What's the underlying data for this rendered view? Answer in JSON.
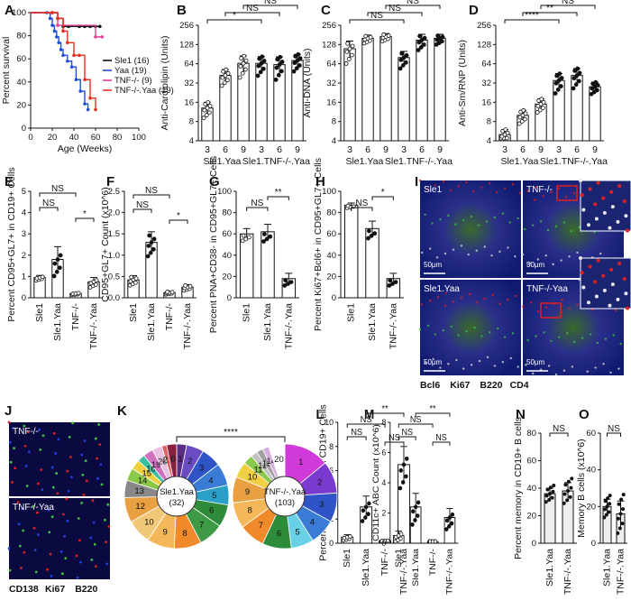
{
  "chart_data": [
    {
      "panel": "A",
      "type": "line",
      "ylabel": "Percent survival",
      "xlabel": "Age (Weeks)",
      "xlim": [
        0,
        100
      ],
      "ylim": [
        0,
        100
      ],
      "xticks": [
        "0",
        "20",
        "40",
        "60",
        "80",
        "100"
      ],
      "yticks": [
        "0",
        "20",
        "40",
        "60",
        "80",
        "100"
      ],
      "series": [
        {
          "name": "Sle1 (16)",
          "color": "#111111",
          "step": true,
          "x": [
            0,
            20,
            25,
            30,
            35,
            45,
            50,
            55,
            60,
            64
          ],
          "y": [
            100,
            100,
            95,
            88,
            88,
            88,
            88,
            88,
            88,
            88
          ]
        },
        {
          "name": "Yaa (19)",
          "color": "#1f4fd8",
          "step": true,
          "x": [
            0,
            15,
            18,
            20,
            22,
            24,
            26,
            28,
            30,
            34,
            38,
            42,
            46,
            50,
            53
          ],
          "y": [
            100,
            100,
            95,
            89,
            84,
            79,
            74,
            68,
            63,
            58,
            53,
            42,
            32,
            21,
            16
          ]
        },
        {
          "name": "TNF-/- (9)",
          "color": "#e0409a",
          "step": true,
          "x": [
            0,
            20,
            25,
            60,
            66
          ],
          "y": [
            100,
            100,
            89,
            79,
            79
          ]
        },
        {
          "name": "TNF-/-.Yaa (19)",
          "color": "#e53020",
          "step": true,
          "x": [
            0,
            20,
            25,
            30,
            34,
            40,
            45,
            50,
            55,
            60
          ],
          "y": [
            100,
            100,
            95,
            84,
            74,
            63,
            63,
            42,
            26,
            16
          ]
        }
      ]
    },
    {
      "panel": "B",
      "type": "bar",
      "ylabel": "Anti-Cardiolipin (Units)",
      "scale": "log2",
      "yticks": [
        "4",
        "8",
        "16",
        "32",
        "64",
        "128",
        "256"
      ],
      "categories": [
        "3",
        "6",
        "9",
        "3",
        "6",
        "9"
      ],
      "group_labels": [
        "Sle1.Yaa",
        "Sle1.TNF-/-.Yaa"
      ],
      "values": [
        13,
        42,
        65,
        65,
        62,
        72
      ],
      "errors": [
        3,
        10,
        20,
        18,
        20,
        18
      ],
      "significance": [
        "*",
        "NS",
        "NS"
      ]
    },
    {
      "panel": "C",
      "type": "bar",
      "ylabel": "Anti-DNA (Units)",
      "scale": "log2",
      "yticks": [
        "4",
        "8",
        "16",
        "32",
        "64",
        "128",
        "256"
      ],
      "categories": [
        "3",
        "6",
        "9",
        "3",
        "6",
        "9"
      ],
      "group_labels": [
        "Sle1.Yaa",
        "Sle1.TNF-/-.Yaa"
      ],
      "values": [
        110,
        160,
        170,
        80,
        150,
        160
      ],
      "errors": [
        35,
        20,
        20,
        20,
        35,
        25
      ],
      "significance": [
        "NS",
        "NS",
        "NS"
      ]
    },
    {
      "panel": "D",
      "type": "bar",
      "ylabel": "Anti-Sm/RNP (Units)",
      "scale": "log2",
      "yticks": [
        "4",
        "8",
        "16",
        "32",
        "64",
        "128",
        "256"
      ],
      "categories": [
        "3",
        "6",
        "9",
        "3",
        "6",
        "9"
      ],
      "group_labels": [
        "Sle1.Yaa",
        "Sle1.TNF-/-.Yaa"
      ],
      "values": [
        5,
        10,
        15,
        35,
        42,
        28
      ],
      "errors": [
        1,
        2,
        3,
        10,
        12,
        5
      ],
      "significance": [
        "****",
        "**",
        "NS"
      ]
    },
    {
      "panel": "E",
      "type": "bar",
      "ylabel": "Percent CD95+GL7+ in CD19+ Cells",
      "yticks": [
        "0",
        "1",
        "2",
        "3",
        "4",
        "5"
      ],
      "ylim": [
        0,
        5
      ],
      "categories": [
        "Sle1",
        "Sle1.Yaa",
        "TNF-/-",
        "TNF-/-.Yaa"
      ],
      "values": [
        0.95,
        1.8,
        0.2,
        0.75
      ],
      "errors": [
        0.1,
        0.6,
        0.05,
        0.2
      ],
      "significance": [
        "NS",
        "NS",
        "*"
      ]
    },
    {
      "panel": "F",
      "type": "bar",
      "ylabel": "CD95+GL7+ Count (x10^6)",
      "yticks": [
        "0.0",
        "0.5",
        "1.0",
        "1.5",
        "2.0",
        "2.5"
      ],
      "ylim": [
        0,
        2.5
      ],
      "categories": [
        "Sle1",
        "Sle1.Yaa",
        "TNF-/-",
        "TNF-/-.Yaa"
      ],
      "values": [
        0.42,
        1.3,
        0.12,
        0.25
      ],
      "errors": [
        0.1,
        0.25,
        0.03,
        0.06
      ],
      "significance": [
        "NS",
        "NS",
        "*"
      ]
    },
    {
      "panel": "G",
      "type": "bar",
      "ylabel": "Percent PNA+CD38- in CD95+GL7+ Cells",
      "yticks": [
        "0",
        "20",
        "40",
        "60",
        "80",
        "100"
      ],
      "ylim": [
        0,
        100
      ],
      "categories": [
        "Sle1",
        "Sle1.Yaa",
        "TNF-/-.Yaa"
      ],
      "values": [
        60,
        62,
        18
      ],
      "errors": [
        5,
        7,
        5
      ],
      "significance": [
        "NS",
        "**"
      ]
    },
    {
      "panel": "H",
      "type": "bar",
      "ylabel": "Percent Ki67+Bcl6+ in CD95+GL7+ Cells",
      "yticks": [
        "0",
        "20",
        "40",
        "60",
        "80",
        "100"
      ],
      "ylim": [
        0,
        100
      ],
      "categories": [
        "Sle1",
        "Sle1.Yaa",
        "TNF-/-.Yaa"
      ],
      "values": [
        87,
        65,
        18
      ],
      "errors": [
        2,
        7,
        5
      ],
      "significance": [
        "NS",
        "*"
      ]
    },
    {
      "panel": "K",
      "type": "pie",
      "charts": [
        {
          "center_label": "Sle1.Yaa",
          "n": "(32)",
          "slices": [
            {
              "label": "1",
              "value": 4,
              "color": "#5b2c83"
            },
            {
              "label": "2",
              "value": 7,
              "color": "#6a4bc4"
            },
            {
              "label": "3",
              "value": 8,
              "color": "#2f54c8"
            },
            {
              "label": "4",
              "value": 9,
              "color": "#3a7bd5"
            },
            {
              "label": "5",
              "value": 8,
              "color": "#2aa0c8"
            },
            {
              "label": "6",
              "value": 9,
              "color": "#2e8b3a"
            },
            {
              "label": "7",
              "value": 10,
              "color": "#3f9a45"
            },
            {
              "label": "8",
              "value": 11,
              "color": "#f08a2a"
            },
            {
              "label": "9",
              "value": 11,
              "color": "#f4b85a"
            },
            {
              "label": "10",
              "value": 10,
              "color": "#f0c878"
            },
            {
              "label": "12",
              "value": 10,
              "color": "#e8a040"
            },
            {
              "label": "13",
              "value": 7,
              "color": "#888888"
            },
            {
              "label": "14",
              "value": 5,
              "color": "#8ac84a"
            },
            {
              "label": "15",
              "value": 4,
              "color": "#f0d040"
            },
            {
              "label": "16",
              "value": 3,
              "color": "#3ac0a0"
            },
            {
              "label": "19",
              "value": 4,
              "color": "#d070c0"
            },
            {
              "label": "20",
              "value": 4,
              "color": "#e8c0e0"
            },
            {
              "label": "21",
              "value": 2,
              "color": "#e06060"
            },
            {
              "label": "0",
              "value": 4,
              "color": "#8a2040"
            }
          ]
        },
        {
          "center_label": "TNF-/-.Yaa",
          "n": "(103)",
          "slices": [
            {
              "label": "1",
              "value": 14,
              "color": "#d03ad8"
            },
            {
              "label": "2",
              "value": 10,
              "color": "#7a3ad0"
            },
            {
              "label": "3",
              "value": 9,
              "color": "#2f54c8"
            },
            {
              "label": "4",
              "value": 8,
              "color": "#3a7bd5"
            },
            {
              "label": "5",
              "value": 7,
              "color": "#6ad0e8"
            },
            {
              "label": "6",
              "value": 9,
              "color": "#2e8b3a"
            },
            {
              "label": "7",
              "value": 8,
              "color": "#f08a2a"
            },
            {
              "label": "8",
              "value": 8,
              "color": "#f4b85a"
            },
            {
              "label": "9",
              "value": 8,
              "color": "#e8a040"
            },
            {
              "label": "10",
              "value": 5,
              "color": "#f0d040"
            },
            {
              "label": "11",
              "value": 3,
              "color": "#8ac84a"
            },
            {
              "label": "12",
              "value": 2,
              "color": "#c0c0c0"
            },
            {
              "label": "13",
              "value": 2,
              "color": "#a0a0a0"
            },
            {
              "label": "14",
              "value": 2,
              "color": "#d8b0e0"
            },
            {
              "label": "20",
              "value": 5,
              "color": "#ffffff"
            }
          ]
        }
      ],
      "significance": "****"
    },
    {
      "panel": "L",
      "type": "bar",
      "ylabel": "Percent CD11c+ ABC in CD19+ Cells",
      "yticks": [
        "0",
        "2",
        "4",
        "6",
        "8",
        "10"
      ],
      "ylim": [
        0,
        10
      ],
      "categories": [
        "Sle1",
        "Sle1.Yaa",
        "TNF-/-",
        "TNF-/-.Yaa"
      ],
      "values": [
        0.5,
        3.0,
        0.2,
        6.5
      ],
      "errors": [
        0.2,
        0.9,
        0.05,
        1.5
      ],
      "significance": [
        "NS",
        "NS",
        "NS",
        "**"
      ]
    },
    {
      "panel": "M",
      "type": "bar",
      "ylabel": "CD11c+ ABC Count (x10^6)",
      "yticks": [
        "0",
        "2",
        "4",
        "6",
        "8"
      ],
      "ylim": [
        0,
        8
      ],
      "categories": [
        "Sle1",
        "Sle1.Yaa",
        "TNF-/-",
        "TNF-/-.Yaa"
      ],
      "values": [
        0.5,
        2.4,
        0.1,
        1.7
      ],
      "errors": [
        0.3,
        0.9,
        0.05,
        0.6
      ],
      "significance": [
        "NS",
        "NS",
        "NS",
        "**"
      ]
    },
    {
      "panel": "N",
      "type": "bar",
      "ylabel": "Percent memory in CD19+ B cells",
      "yticks": [
        "0",
        "20",
        "40",
        "60",
        "80"
      ],
      "ylim": [
        0,
        80
      ],
      "categories": [
        "Sle1.Yaa",
        "TNF-/-.Yaa"
      ],
      "values": [
        36,
        38
      ],
      "errors": [
        4,
        6
      ],
      "significance": [
        "NS"
      ]
    },
    {
      "panel": "O",
      "type": "bar",
      "ylabel": "Memory B cells (x10^6)",
      "yticks": [
        "0",
        "20",
        "40",
        "60"
      ],
      "ylim": [
        0,
        60
      ],
      "categories": [
        "Sle1.Yaa",
        "TNF-/-.Yaa"
      ],
      "values": [
        20,
        16
      ],
      "errors": [
        4,
        7
      ],
      "significance": [
        "NS"
      ]
    }
  ],
  "micrographs": {
    "I": {
      "tiles": [
        {
          "label": "Sle1",
          "scale": "50μm"
        },
        {
          "label": "TNF-/-",
          "scale": "50μm"
        },
        {
          "label": "Sle1.Yaa",
          "scale": "50μm"
        },
        {
          "label": "TNF-/-Yaa",
          "scale": "50μm"
        }
      ],
      "legend": [
        {
          "text": "Bcl6",
          "color": "#e01818"
        },
        {
          "text": "Ki67",
          "color": "#30c030"
        },
        {
          "text": "B220",
          "color": "#2040e0"
        },
        {
          "text": "CD4",
          "color": "#cfcfcf"
        }
      ]
    },
    "J": {
      "tiles": [
        {
          "label": "TNF-/-"
        },
        {
          "label": "TNF-/-Yaa"
        }
      ],
      "legend": [
        {
          "text": "CD138",
          "color": "#e01818"
        },
        {
          "text": "Ki67",
          "color": "#30c030"
        },
        {
          "text": "B220",
          "color": "#2040e0"
        }
      ]
    }
  }
}
